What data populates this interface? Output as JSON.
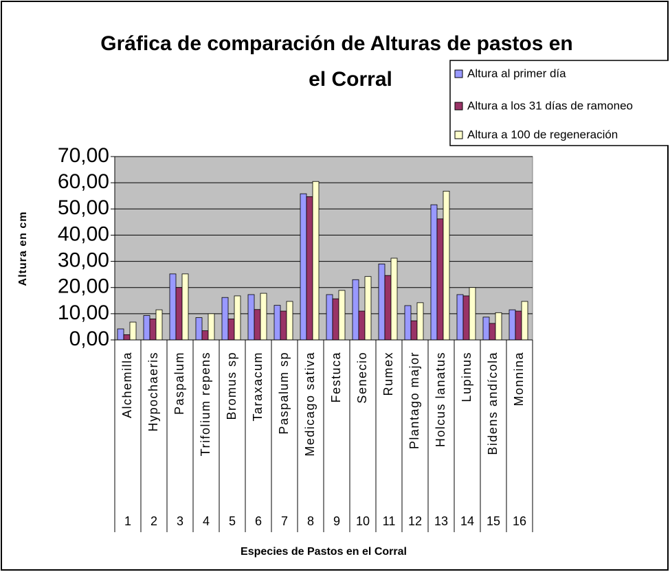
{
  "chart_data": {
    "type": "bar",
    "title_lines": [
      "Gráfica de comparación de Alturas de pastos en",
      "el Corral"
    ],
    "y_label": "Altura en cm",
    "x_label": "Especies de Pastos en el Corral",
    "categories": [
      "Alchemilla",
      "Hypochaeris",
      "Paspalum",
      "Trifolium repens",
      "Bromus sp",
      "Taraxacum",
      "Paspalum sp",
      "Medicago sativa",
      "Festuca",
      "Senecio",
      "Rumex",
      "Plantago major",
      "Holcus lanatus",
      "Lupinus",
      "Bidens andícola",
      "Monnina"
    ],
    "category_numbers": [
      1,
      2,
      3,
      4,
      5,
      6,
      7,
      8,
      9,
      10,
      11,
      12,
      13,
      14,
      15,
      16
    ],
    "series": [
      {
        "name": "Altura al primer día",
        "color": "#9999ff",
        "values": [
          4.2,
          9.3,
          25.2,
          8.5,
          16.2,
          17.3,
          13.2,
          55.8,
          17.3,
          23.0,
          29.0,
          13.1,
          51.6,
          17.3,
          8.7,
          11.5
        ]
      },
      {
        "name": "Altura a los 31 días de ramoneo",
        "color": "#993366",
        "values": [
          2.0,
          8.0,
          20.0,
          3.5,
          8.0,
          11.6,
          11.0,
          54.7,
          15.7,
          11.0,
          24.6,
          7.3,
          46.2,
          16.8,
          6.3,
          11.0
        ]
      },
      {
        "name": "Altura a 100 de regeneración",
        "color": "#ffffcc",
        "values": [
          6.8,
          11.5,
          25.2,
          10.0,
          16.8,
          17.8,
          14.7,
          60.5,
          18.9,
          24.2,
          31.2,
          14.2,
          56.8,
          20.0,
          10.4,
          14.7
        ]
      }
    ],
    "ylim": [
      0,
      70
    ],
    "yticks": [
      {
        "value": 0,
        "label": "0,00"
      },
      {
        "value": 10,
        "label": "10,00"
      },
      {
        "value": 20,
        "label": "20,00"
      },
      {
        "value": 30,
        "label": "30,00"
      },
      {
        "value": 40,
        "label": "40,00"
      },
      {
        "value": 50,
        "label": "50,00"
      },
      {
        "value": 60,
        "label": "60,00"
      },
      {
        "value": 70,
        "label": "70,00"
      }
    ],
    "grid": true,
    "legend": "top-right"
  }
}
